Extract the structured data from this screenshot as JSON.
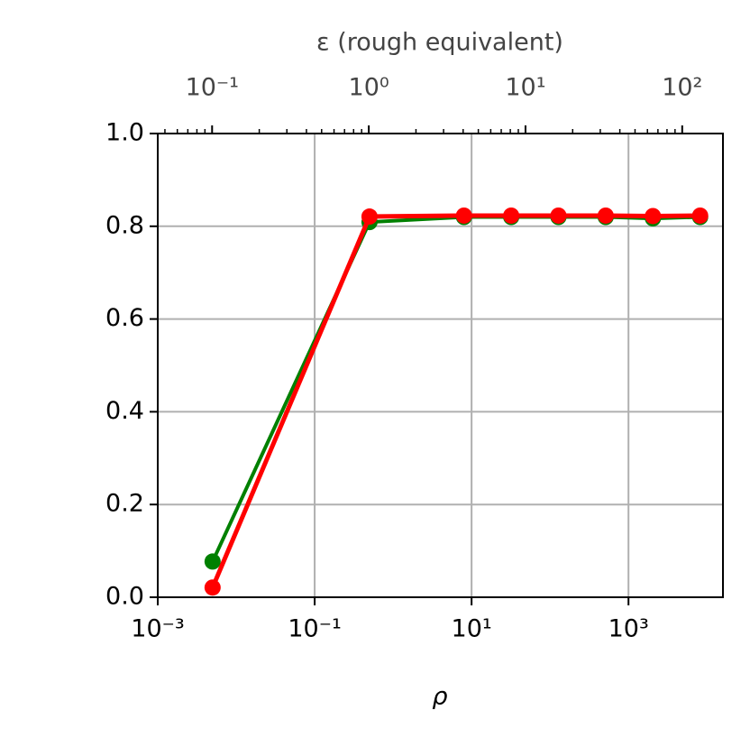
{
  "chart_data": {
    "type": "line",
    "xlabel": "ρ",
    "x2label": "ε (rough equivalent)",
    "xscale": "log",
    "x2scale": "log",
    "grid": true,
    "xlim": [
      0.001,
      16000
    ],
    "xticks": [
      {
        "value": 0.001,
        "label": "10⁻³"
      },
      {
        "value": 0.1,
        "label": "10⁻¹"
      },
      {
        "value": 10,
        "label": "10¹"
      },
      {
        "value": 1000,
        "label": "10³"
      }
    ],
    "x2lim": [
      0.045,
      182
    ],
    "x2ticks": [
      {
        "value": 0.1,
        "label": "10⁻¹"
      },
      {
        "value": 1,
        "label": "10⁰"
      },
      {
        "value": 10,
        "label": "10¹"
      },
      {
        "value": 100,
        "label": "10²"
      }
    ],
    "x2minorticks": [
      0.05,
      0.06,
      0.07,
      0.08,
      0.09,
      0.2,
      0.3,
      0.4,
      0.5,
      0.6,
      0.7,
      0.8,
      0.9,
      2,
      3,
      4,
      5,
      6,
      7,
      8,
      9,
      20,
      30,
      40,
      50,
      60,
      70,
      80,
      90
    ],
    "ylim": [
      0,
      1
    ],
    "yticks": [
      {
        "value": 0,
        "label": "0.0"
      },
      {
        "value": 0.2,
        "label": "0.2"
      },
      {
        "value": 0.4,
        "label": "0.4"
      },
      {
        "value": 0.6,
        "label": "0.6"
      },
      {
        "value": 0.8,
        "label": "0.8"
      },
      {
        "value": 1,
        "label": "1.0"
      }
    ],
    "x": [
      0.005,
      0.5,
      8,
      32,
      128,
      512,
      2048,
      8192
    ],
    "series": [
      {
        "color": "#008000",
        "width": 4,
        "values": [
          0.077,
          0.809,
          0.82,
          0.82,
          0.82,
          0.82,
          0.817,
          0.82
        ]
      },
      {
        "color": "#ff0000",
        "width": 5,
        "values": [
          0.021,
          0.821,
          0.823,
          0.823,
          0.823,
          0.823,
          0.822,
          0.823
        ]
      }
    ]
  }
}
